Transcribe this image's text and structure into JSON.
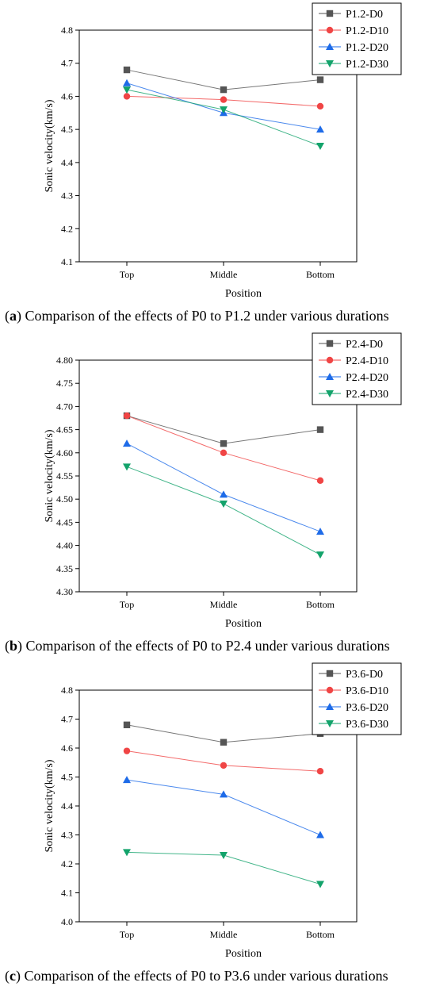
{
  "chart_data": [
    {
      "type": "line",
      "categories": [
        "Top",
        "Middle",
        "Bottom"
      ],
      "xlabel": "Position",
      "ylabel": "Sonic velocity(km/s)",
      "ylim": [
        4.1,
        4.8
      ],
      "yticks": [
        "4.1",
        "4.2",
        "4.3",
        "4.4",
        "4.5",
        "4.6",
        "4.7",
        "4.8"
      ],
      "legend_position": "top-right",
      "grid": false,
      "series": [
        {
          "name": "P1.2-D0",
          "values": [
            4.68,
            4.62,
            4.65
          ],
          "color": "#555555",
          "marker": "square"
        },
        {
          "name": "P1.2-D10",
          "values": [
            4.6,
            4.59,
            4.57
          ],
          "color": "#f04545",
          "marker": "circle"
        },
        {
          "name": "P1.2-D20",
          "values": [
            4.64,
            4.55,
            4.5
          ],
          "color": "#1e6be8",
          "marker": "triangle-up"
        },
        {
          "name": "P1.2-D30",
          "values": [
            4.62,
            4.56,
            4.45
          ],
          "color": "#13a36b",
          "marker": "triangle-down"
        }
      ],
      "caption_letter": "a",
      "caption_text": "Comparison of the effects of P0 to P1.2 under various durations"
    },
    {
      "type": "line",
      "categories": [
        "Top",
        "Middle",
        "Bottom"
      ],
      "xlabel": "Position",
      "ylabel": "Sonic velocity(km/s)",
      "ylim": [
        4.3,
        4.8
      ],
      "yticks": [
        "4.30",
        "4.35",
        "4.40",
        "4.45",
        "4.50",
        "4.55",
        "4.60",
        "4.65",
        "4.70",
        "4.75",
        "4.80"
      ],
      "legend_position": "top-right",
      "grid": false,
      "series": [
        {
          "name": "P2.4-D0",
          "values": [
            4.68,
            4.62,
            4.65
          ],
          "color": "#555555",
          "marker": "square"
        },
        {
          "name": "P2.4-D10",
          "values": [
            4.68,
            4.6,
            4.54
          ],
          "color": "#f04545",
          "marker": "circle"
        },
        {
          "name": "P2.4-D20",
          "values": [
            4.62,
            4.51,
            4.43
          ],
          "color": "#1e6be8",
          "marker": "triangle-up"
        },
        {
          "name": "P2.4-D30",
          "values": [
            4.57,
            4.49,
            4.38
          ],
          "color": "#13a36b",
          "marker": "triangle-down"
        }
      ],
      "caption_letter": "b",
      "caption_text": "Comparison of the effects of P0 to P2.4 under various durations"
    },
    {
      "type": "line",
      "categories": [
        "Top",
        "Middle",
        "Bottom"
      ],
      "xlabel": "Position",
      "ylabel": "Sonic velocity(km/s)",
      "ylim": [
        4.0,
        4.8
      ],
      "yticks": [
        "4.0",
        "4.1",
        "4.2",
        "4.3",
        "4.4",
        "4.5",
        "4.6",
        "4.7",
        "4.8"
      ],
      "legend_position": "top-right",
      "grid": false,
      "series": [
        {
          "name": "P3.6-D0",
          "values": [
            4.68,
            4.62,
            4.65
          ],
          "color": "#555555",
          "marker": "square"
        },
        {
          "name": "P3.6-D10",
          "values": [
            4.59,
            4.54,
            4.52
          ],
          "color": "#f04545",
          "marker": "circle"
        },
        {
          "name": "P3.6-D20",
          "values": [
            4.49,
            4.44,
            4.3
          ],
          "color": "#1e6be8",
          "marker": "triangle-up"
        },
        {
          "name": "P3.6-D30",
          "values": [
            4.24,
            4.23,
            4.13
          ],
          "color": "#13a36b",
          "marker": "triangle-down"
        }
      ],
      "caption_letter": "c",
      "caption_text": "Comparison of the effects of P0 to P3.6 under various durations"
    }
  ]
}
